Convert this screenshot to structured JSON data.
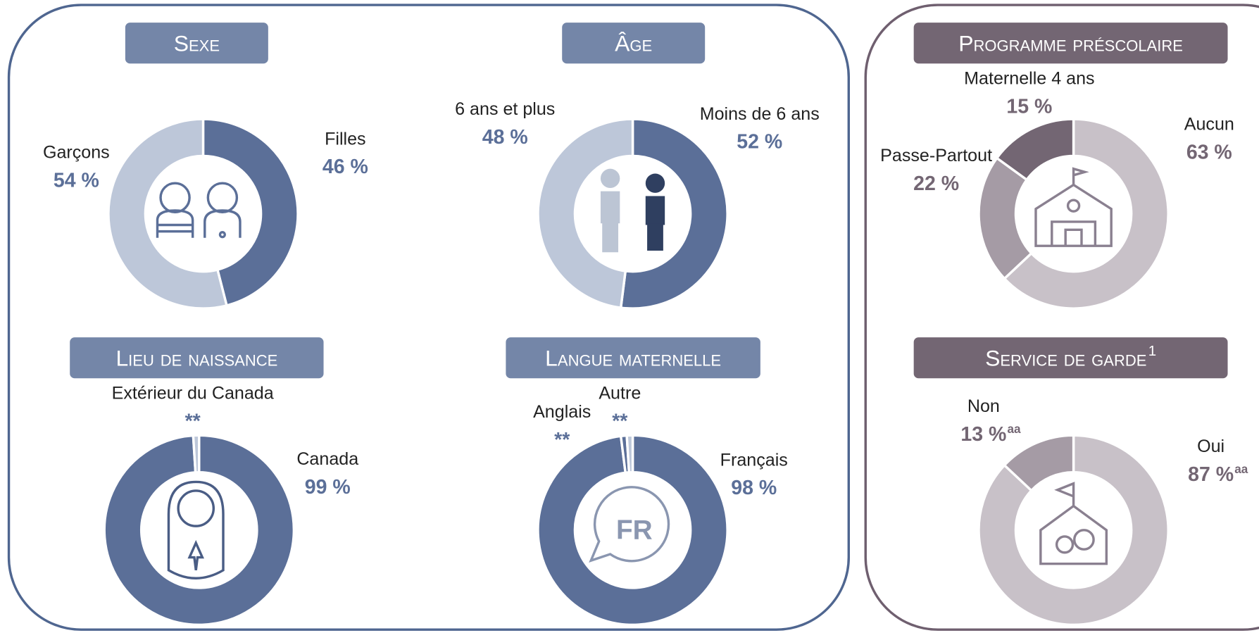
{
  "chart_data": [
    {
      "type": "pie",
      "donut": true,
      "title": "Sexe",
      "categories": [
        "Filles",
        "Garçons"
      ],
      "values": [
        46,
        54
      ],
      "value_labels": [
        "46 %",
        "54 %"
      ],
      "colors": [
        "#5b6f98",
        "#bdc7d9"
      ],
      "label_color": "#5b6f98",
      "header_color": "#7486a8"
    },
    {
      "type": "pie",
      "donut": true,
      "title": "Âge",
      "categories": [
        "Moins de 6 ans",
        "6 ans et plus"
      ],
      "values": [
        52,
        48
      ],
      "value_labels": [
        "52 %",
        "48 %"
      ],
      "colors": [
        "#5b6f98",
        "#bdc7d9"
      ],
      "label_color": "#5b6f98",
      "header_color": "#7486a8"
    },
    {
      "type": "pie",
      "donut": true,
      "title": "Lieu de naissance",
      "categories": [
        "Canada",
        "Extérieur du Canada"
      ],
      "values": [
        99,
        1
      ],
      "value_labels": [
        "99 %",
        "**"
      ],
      "colors": [
        "#5b6f98",
        "#bdc7d9"
      ],
      "label_color": "#5b6f98",
      "header_color": "#7486a8"
    },
    {
      "type": "pie",
      "donut": true,
      "title": "Langue maternelle",
      "categories": [
        "Français",
        "Anglais",
        "Autre"
      ],
      "values": [
        98,
        1,
        1
      ],
      "value_labels": [
        "98 %",
        "**",
        "**"
      ],
      "colors": [
        "#5b6f98",
        "#5b6f98",
        "#bdc7d9"
      ],
      "label_color": "#5b6f98",
      "header_color": "#7486a8"
    },
    {
      "type": "pie",
      "donut": true,
      "title": "Programme préscolaire",
      "categories": [
        "Aucun",
        "Passe-Partout",
        "Maternelle 4 ans"
      ],
      "values": [
        63,
        22,
        15
      ],
      "value_labels": [
        "63 %",
        "22 %",
        "15 %"
      ],
      "colors": [
        "#c8c1c8",
        "#a59ba5",
        "#736673"
      ],
      "label_color": "#736673",
      "header_color": "#736673"
    },
    {
      "type": "pie",
      "donut": true,
      "title": "Service de garde",
      "title_note": "1",
      "categories": [
        "Oui",
        "Non"
      ],
      "values": [
        87,
        13
      ],
      "value_labels": [
        "87 %",
        "13 %"
      ],
      "value_notes": [
        "aa",
        "aa"
      ],
      "colors": [
        "#c8c1c8",
        "#a59ba5"
      ],
      "label_color": "#736673",
      "header_color": "#736673"
    }
  ]
}
